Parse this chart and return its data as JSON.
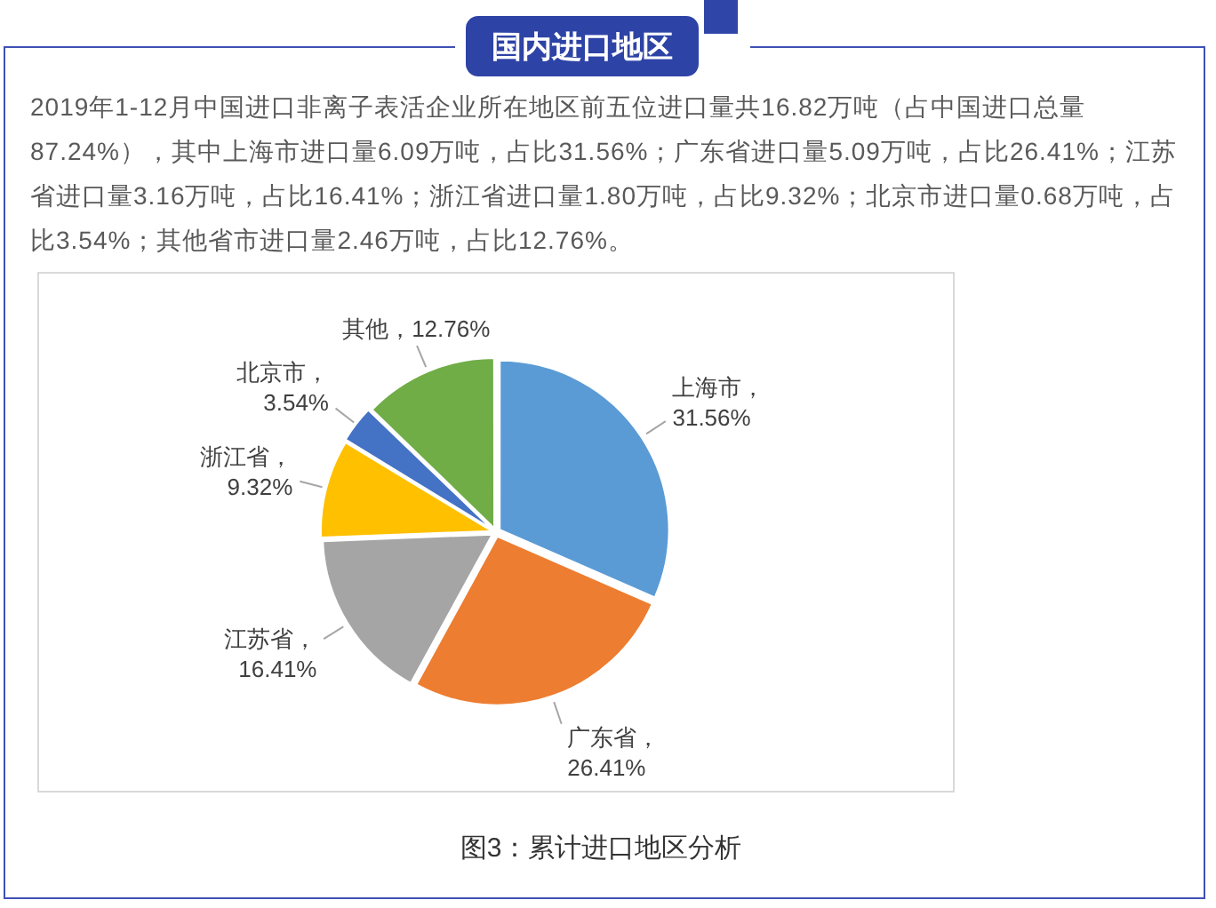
{
  "chart_data": {
    "type": "pie",
    "title": "国内进口地区",
    "subtitle": "2019年1-12月中国进口非离子表活企业所在地区前五位进口量共16.82万吨（占中国进口总量87.24%），其中上海市进口量6.09万吨，占比31.56%；广东省进口量5.09万吨，占比26.41%；江苏省进口量3.16万吨，占比16.41%；浙江省进口量1.80万吨，占比9.32%；北京市进口量0.68万吨，占比3.54%；其他省市进口量2.46万吨，占比12.76%。",
    "categories": [
      "上海市",
      "广东省",
      "江苏省",
      "浙江省",
      "北京市",
      "其他"
    ],
    "values": [
      31.56,
      26.41,
      16.41,
      9.32,
      3.54,
      12.76
    ],
    "colors": [
      "#5b9bd5",
      "#ed7d31",
      "#a5a5a5",
      "#ffc000",
      "#4472c4",
      "#70ad47"
    ],
    "value_labels": [
      "，31.56%",
      "，26.41%",
      "，16.41%",
      "，9.32%",
      "，3.54%",
      "，12.76%"
    ],
    "legend": false,
    "annotations": [
      "图3：累计进口地区分析"
    ]
  }
}
